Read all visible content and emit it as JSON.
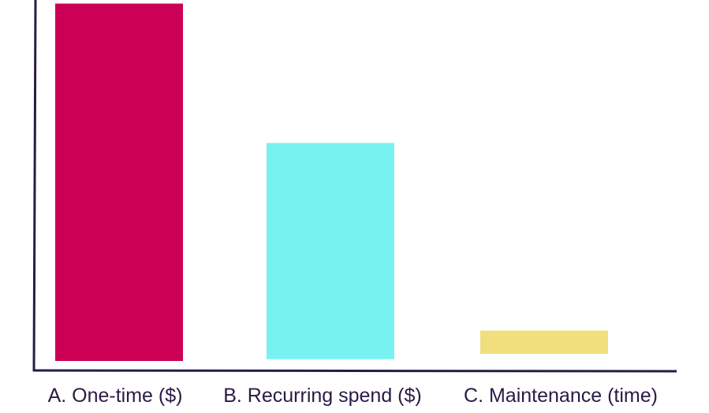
{
  "chart_data": {
    "type": "bar",
    "categories": [
      "A. One-time ($)",
      "B. Recurring spend ($)",
      "C. Maintenance (time)"
    ],
    "series": [
      {
        "values": [
          100,
          61,
          8.5
        ],
        "floor_values": [
          0,
          0.5,
          2
        ]
      }
    ],
    "colors": [
      "#cc0055",
      "#78f2f0",
      "#f0df7c"
    ],
    "axis_color": "#2a1a48",
    "title": "",
    "xlabel": "",
    "ylabel": "",
    "ylim": [
      0,
      101
    ],
    "grid": false,
    "y_ticks_shown": false
  }
}
